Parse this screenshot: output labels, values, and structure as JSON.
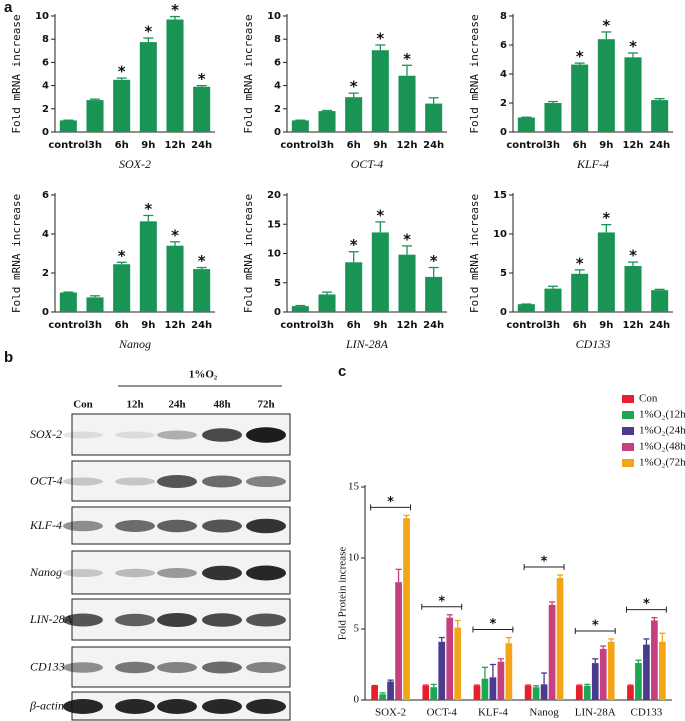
{
  "panel_labels": [
    "a",
    "b",
    "c"
  ],
  "blot": {
    "header": "1%O₂",
    "lanes": [
      "Con",
      "12h",
      "24h",
      "48h",
      "72h"
    ],
    "rows": [
      "SOX-2",
      "OCT-4",
      "KLF-4",
      "Nanog",
      "LIN-28A",
      "CD133",
      "β-actin"
    ]
  },
  "chart_data": [
    {
      "type": "bar",
      "xlabel": "SOX-2",
      "ylabel": "Fold mRNA increase",
      "color": "#1a9455",
      "categories": [
        "control",
        "3h",
        "6h",
        "9h",
        "12h",
        "24h"
      ],
      "values": [
        1.0,
        2.75,
        4.5,
        7.75,
        9.7,
        3.9
      ],
      "errors": [
        0.02,
        0.08,
        0.15,
        0.35,
        0.25,
        0.1
      ],
      "annotations": [
        null,
        null,
        "*",
        "*",
        "*",
        "*"
      ],
      "ylim": [
        0,
        10
      ],
      "yticks": [
        0,
        2,
        4,
        6,
        8,
        10
      ]
    },
    {
      "type": "bar",
      "xlabel": "OCT-4",
      "ylabel": "Fold mRNA increase",
      "color": "#1a9455",
      "categories": [
        "control",
        "3h",
        "6h",
        "9h",
        "12h",
        "24h"
      ],
      "values": [
        1.0,
        1.8,
        3.0,
        7.05,
        4.85,
        2.45
      ],
      "errors": [
        0.02,
        0.05,
        0.35,
        0.45,
        0.9,
        0.5
      ],
      "annotations": [
        null,
        null,
        "*",
        "*",
        "*",
        null
      ],
      "ylim": [
        0,
        10
      ],
      "yticks": [
        0,
        2,
        4,
        6,
        8,
        10
      ]
    },
    {
      "type": "bar",
      "xlabel": "KLF-4",
      "ylabel": "Fold mRNA increase",
      "color": "#1a9455",
      "categories": [
        "control",
        "3h",
        "6h",
        "9h",
        "12h",
        "24h"
      ],
      "values": [
        1.0,
        2.0,
        4.65,
        6.4,
        5.15,
        2.2
      ],
      "errors": [
        0.02,
        0.1,
        0.1,
        0.5,
        0.3,
        0.1
      ],
      "annotations": [
        null,
        null,
        "*",
        "*",
        "*",
        null
      ],
      "ylim": [
        0,
        8
      ],
      "yticks": [
        0,
        2,
        4,
        6,
        8
      ]
    },
    {
      "type": "bar",
      "xlabel": "Nanog",
      "ylabel": "Fold mRNA increase",
      "color": "#1a9455",
      "categories": [
        "control",
        "3h",
        "6h",
        "9h",
        "12h",
        "24h"
      ],
      "values": [
        1.0,
        0.75,
        2.45,
        4.65,
        3.4,
        2.2
      ],
      "errors": [
        0.02,
        0.08,
        0.1,
        0.3,
        0.2,
        0.08
      ],
      "annotations": [
        null,
        null,
        "*",
        "*",
        "*",
        "*"
      ],
      "ylim": [
        0,
        6
      ],
      "yticks": [
        0,
        2,
        4,
        6
      ]
    },
    {
      "type": "bar",
      "xlabel": "LIN-28A",
      "ylabel": "Fold mRNA increase",
      "color": "#1a9455",
      "categories": [
        "control",
        "3h",
        "6h",
        "9h",
        "12h",
        "24h"
      ],
      "values": [
        1.0,
        3.0,
        8.5,
        13.6,
        9.8,
        6.0
      ],
      "errors": [
        0.1,
        0.4,
        1.8,
        1.8,
        1.5,
        1.6
      ],
      "annotations": [
        null,
        null,
        "*",
        "*",
        "*",
        "*"
      ],
      "ylim": [
        0,
        20
      ],
      "yticks": [
        0,
        5,
        10,
        15,
        20
      ]
    },
    {
      "type": "bar",
      "xlabel": "CD133",
      "ylabel": "Fold mRNA increase",
      "color": "#1a9455",
      "categories": [
        "control",
        "3h",
        "6h",
        "9h",
        "12h",
        "24h"
      ],
      "values": [
        1.0,
        3.0,
        4.9,
        10.2,
        5.9,
        2.8
      ],
      "errors": [
        0.02,
        0.3,
        0.5,
        1.0,
        0.5,
        0.1
      ],
      "annotations": [
        null,
        null,
        "*",
        "*",
        "*",
        null
      ],
      "ylim": [
        0,
        15
      ],
      "yticks": [
        0,
        5,
        10,
        15
      ]
    },
    {
      "type": "grouped_bar",
      "ylabel": "Fold Protein increase",
      "categories": [
        "SOX-2",
        "OCT-4",
        "KLF-4",
        "Nanog",
        "LIN-28A",
        "CD133"
      ],
      "annotations": [
        "*",
        "*",
        "*",
        "*",
        "*",
        "*"
      ],
      "series": [
        {
          "name": "Con",
          "color": "#e3202c",
          "values": [
            1.0,
            1.0,
            1.0,
            1.0,
            1.0,
            1.0
          ],
          "errors": [
            0.02,
            0.05,
            0.05,
            0.05,
            0.05,
            0.05
          ]
        },
        {
          "name": "1%O₂(12h)",
          "color": "#1fa653",
          "values": [
            0.4,
            0.9,
            1.5,
            0.9,
            1.0,
            2.6
          ],
          "errors": [
            0.1,
            0.2,
            0.8,
            0.1,
            0.1,
            0.2
          ]
        },
        {
          "name": "1%O₂(24h)",
          "color": "#4a3b8f",
          "values": [
            1.3,
            4.1,
            1.6,
            1.1,
            2.6,
            3.9
          ],
          "errors": [
            0.1,
            0.3,
            0.9,
            0.8,
            0.3,
            0.4
          ]
        },
        {
          "name": "1%O₂(48h)",
          "color": "#c4407f",
          "values": [
            8.3,
            5.8,
            2.7,
            6.7,
            3.6,
            5.6
          ],
          "errors": [
            0.9,
            0.2,
            0.2,
            0.2,
            0.2,
            0.2
          ]
        },
        {
          "name": "1%O₂(72h)",
          "color": "#f2a516",
          "values": [
            12.8,
            5.1,
            4.0,
            8.6,
            4.1,
            4.1
          ],
          "errors": [
            0.2,
            0.5,
            0.4,
            0.2,
            0.2,
            0.6
          ]
        }
      ],
      "ylim": [
        0,
        15
      ],
      "yticks": [
        0,
        5,
        10,
        15
      ],
      "legend": "upper right"
    }
  ]
}
